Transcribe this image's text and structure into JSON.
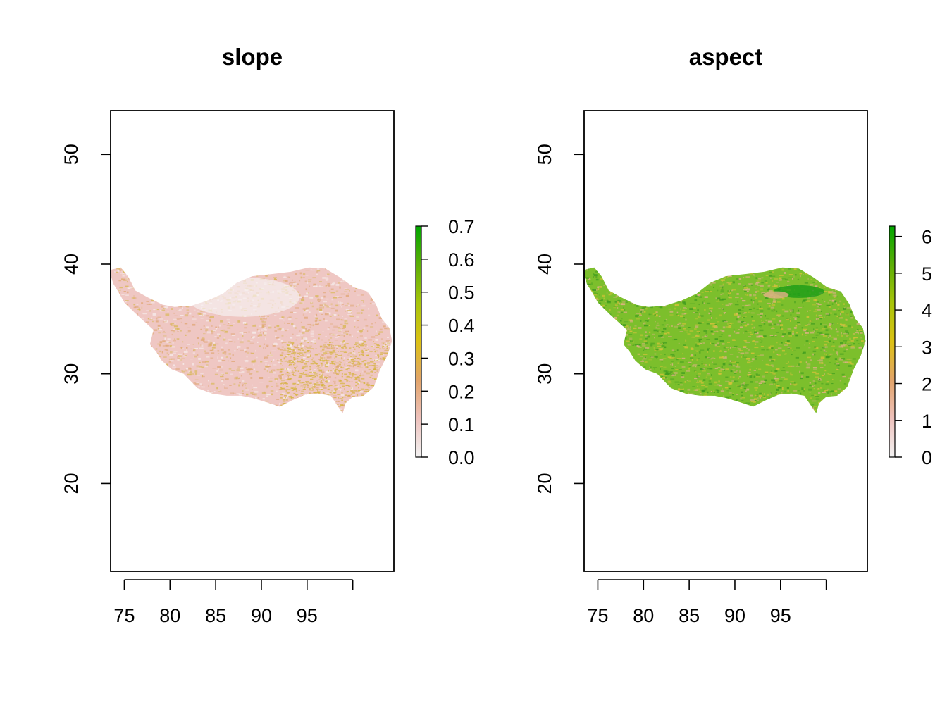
{
  "panels": [
    {
      "id": "slope",
      "title": "slope",
      "x_ticks": [
        75,
        80,
        85,
        90,
        95,
        100
      ],
      "x_tick_labels": [
        "75",
        "80",
        "85",
        "90",
        "95",
        ""
      ],
      "y_ticks": [
        20,
        30,
        40,
        50
      ],
      "y_tick_labels": [
        "20",
        "30",
        "40",
        "50"
      ],
      "xlim": [
        73.5,
        104.5
      ],
      "ylim": [
        12,
        54
      ],
      "legend": {
        "min": 0.0,
        "max": 0.7,
        "ticks": [
          0.0,
          0.1,
          0.2,
          0.3,
          0.4,
          0.5,
          0.6,
          0.7
        ],
        "tick_labels": [
          "0.0",
          "0.1",
          "0.2",
          "0.3",
          "0.4",
          "0.5",
          "0.6",
          "0.7"
        ]
      },
      "base_color": "#efc7c3",
      "texture_colors": [
        "#e0a878",
        "#d9b85a",
        "#f6eceb"
      ],
      "highlight_color": "#d5b43a"
    },
    {
      "id": "aspect",
      "title": "aspect",
      "x_ticks": [
        75,
        80,
        85,
        90,
        95,
        100
      ],
      "x_tick_labels": [
        "75",
        "80",
        "85",
        "90",
        "95",
        ""
      ],
      "y_ticks": [
        20,
        30,
        40,
        50
      ],
      "y_tick_labels": [
        "20",
        "30",
        "40",
        "50"
      ],
      "xlim": [
        73.5,
        104.5
      ],
      "ylim": [
        12,
        54
      ],
      "legend": {
        "min": 0,
        "max": 6.28,
        "ticks": [
          0,
          1,
          2,
          3,
          4,
          5,
          6
        ],
        "tick_labels": [
          "0",
          "1",
          "2",
          "3",
          "4",
          "5",
          "6"
        ]
      },
      "base_color": "#7cbf2c",
      "texture_colors": [
        "#d8c23a",
        "#3a9a1e",
        "#e3b08a"
      ],
      "highlight_color": "#139a16"
    }
  ],
  "colorbar_stops": [
    "#f2f2f2",
    "#eec2bd",
    "#e2a46a",
    "#dcc114",
    "#a8c50a",
    "#5cae06",
    "#00a600"
  ],
  "region_outline_lonlat": [
    [
      73.6,
      39.5
    ],
    [
      74.6,
      39.7
    ],
    [
      75.4,
      38.9
    ],
    [
      76.2,
      37.6
    ],
    [
      77.5,
      37.0
    ],
    [
      79.2,
      36.3
    ],
    [
      80.5,
      36.1
    ],
    [
      82.3,
      36.2
    ],
    [
      84.2,
      36.7
    ],
    [
      85.8,
      37.3
    ],
    [
      87.3,
      38.3
    ],
    [
      89.0,
      38.9
    ],
    [
      91.2,
      39.1
    ],
    [
      93.2,
      39.3
    ],
    [
      95.2,
      39.7
    ],
    [
      97.0,
      39.6
    ],
    [
      98.6,
      38.8
    ],
    [
      100.1,
      37.9
    ],
    [
      101.6,
      37.5
    ],
    [
      102.5,
      36.4
    ],
    [
      103.2,
      35.0
    ],
    [
      104.0,
      34.2
    ],
    [
      104.3,
      33.0
    ],
    [
      103.8,
      31.7
    ],
    [
      103.0,
      30.4
    ],
    [
      102.3,
      28.8
    ],
    [
      101.2,
      28.0
    ],
    [
      100.0,
      27.9
    ],
    [
      99.2,
      27.3
    ],
    [
      98.9,
      26.4
    ],
    [
      98.4,
      27.0
    ],
    [
      97.6,
      28.0
    ],
    [
      96.2,
      28.2
    ],
    [
      94.8,
      28.1
    ],
    [
      93.4,
      27.6
    ],
    [
      92.0,
      27.0
    ],
    [
      90.6,
      27.4
    ],
    [
      89.0,
      27.8
    ],
    [
      87.8,
      28.0
    ],
    [
      86.2,
      28.0
    ],
    [
      84.6,
      28.2
    ],
    [
      83.0,
      28.7
    ],
    [
      81.5,
      30.0
    ],
    [
      80.2,
      30.4
    ],
    [
      79.1,
      31.2
    ],
    [
      78.5,
      32.0
    ],
    [
      77.8,
      32.7
    ],
    [
      78.2,
      34.0
    ],
    [
      77.0,
      34.9
    ],
    [
      76.1,
      35.6
    ],
    [
      75.0,
      36.5
    ],
    [
      74.4,
      37.4
    ],
    [
      73.8,
      38.2
    ],
    [
      73.5,
      39.0
    ]
  ]
}
